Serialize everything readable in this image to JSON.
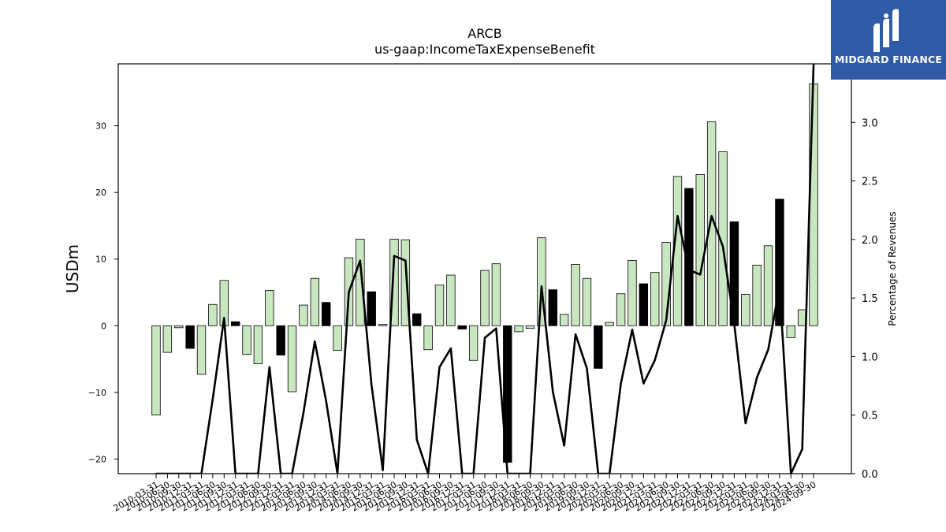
{
  "logo": {
    "text": "MIDGARD FINANCE",
    "icon": "midgard-logo-icon",
    "background": "#2f5aa8"
  },
  "chart_data": {
    "type": "bar",
    "title": "ARCB",
    "subtitle": "us-gaap:IncomeTaxExpenseBenefit",
    "ylabel": "USDm",
    "ylabel_right": "Percentage of Revenues",
    "ylim": [
      -22.2,
      39.3
    ],
    "ylim_right": [
      0.0,
      3.5
    ],
    "yticks": [
      -20,
      -10,
      0,
      10,
      20,
      30
    ],
    "yticks_right": [
      0.0,
      0.5,
      1.0,
      1.5,
      2.0,
      2.5,
      3.0
    ],
    "colors": {
      "quarterly_bar": "#c8e6c0",
      "annual_bar": "#000000",
      "line": "#000000"
    },
    "categories": [
      "2010-03-31",
      "2010-06-30",
      "2010-09-30",
      "2010-12-31",
      "2011-03-31",
      "2011-06-30",
      "2011-09-30",
      "2011-12-31",
      "2012-03-31",
      "2012-06-30",
      "2012-09-30",
      "2012-12-31",
      "2013-03-31",
      "2013-06-30",
      "2013-09-30",
      "2013-12-31",
      "2014-03-31",
      "2014-06-30",
      "2014-09-30",
      "2014-12-31",
      "2015-03-31",
      "2015-06-30",
      "2015-09-30",
      "2015-12-31",
      "2016-03-31",
      "2016-06-30",
      "2016-09-30",
      "2016-12-31",
      "2017-03-31",
      "2017-06-30",
      "2017-09-30",
      "2017-12-31",
      "2018-03-31",
      "2018-06-30",
      "2018-09-30",
      "2018-12-31",
      "2019-03-31",
      "2019-06-30",
      "2019-09-30",
      "2019-12-31",
      "2020-03-31",
      "2020-06-30",
      "2020-09-30",
      "2020-12-31",
      "2021-03-31",
      "2021-06-30",
      "2021-09-30",
      "2021-12-31",
      "2022-03-31",
      "2022-06-30",
      "2022-09-30",
      "2022-12-31",
      "2023-03-31",
      "2023-06-30",
      "2023-09-30",
      "2023-12-31",
      "2024-03-31",
      "2024-06-30",
      "2024-09-30"
    ],
    "series": [
      {
        "values": [
          -13.4,
          -4.0,
          -0.3,
          -3.4,
          -7.3,
          3.2,
          6.8,
          0.6,
          -4.3,
          -5.7,
          5.3,
          -4.4,
          -9.9,
          3.1,
          7.1,
          3.5,
          -3.7,
          10.2,
          13.0,
          5.1,
          0.2,
          13.0,
          12.9,
          1.8,
          -3.6,
          6.1,
          7.6,
          -0.5,
          -5.2,
          8.3,
          9.3,
          -20.5,
          -0.9,
          -0.4,
          13.2,
          5.4,
          1.7,
          9.2,
          7.1,
          -6.4,
          0.5,
          4.8,
          9.8,
          6.3,
          8.0,
          12.5,
          22.4,
          20.6,
          22.7,
          30.6,
          26.1,
          15.6,
          4.7,
          9.1,
          12.0,
          19.0,
          -1.8,
          2.4,
          36.3
        ],
        "annual": [
          false,
          false,
          false,
          true,
          false,
          false,
          false,
          true,
          false,
          false,
          false,
          true,
          false,
          false,
          false,
          true,
          false,
          false,
          false,
          true,
          false,
          false,
          false,
          true,
          false,
          false,
          false,
          true,
          false,
          false,
          false,
          true,
          false,
          false,
          false,
          true,
          false,
          false,
          false,
          true,
          false,
          false,
          false,
          true,
          false,
          false,
          false,
          true,
          false,
          false,
          false,
          true,
          false,
          false,
          false,
          true,
          false,
          false,
          false
        ]
      },
      {
        "axis": "right",
        "values": [
          0.0,
          0.0,
          0.0,
          0.0,
          0.0,
          0.64,
          1.33,
          0.0,
          0.0,
          0.0,
          0.91,
          0.0,
          0.0,
          0.52,
          1.13,
          0.62,
          0.0,
          1.55,
          1.82,
          0.76,
          0.03,
          1.86,
          1.82,
          0.29,
          0.0,
          0.91,
          1.07,
          0.0,
          0.0,
          1.16,
          1.24,
          0.0,
          0.0,
          0.0,
          1.6,
          0.7,
          0.24,
          1.19,
          0.9,
          0.0,
          0.0,
          0.77,
          1.23,
          0.77,
          0.97,
          1.31,
          2.2,
          1.74,
          1.7,
          2.2,
          1.94,
          1.28,
          0.43,
          0.82,
          1.06,
          1.6,
          0.0,
          0.21,
          3.5
        ]
      }
    ]
  }
}
